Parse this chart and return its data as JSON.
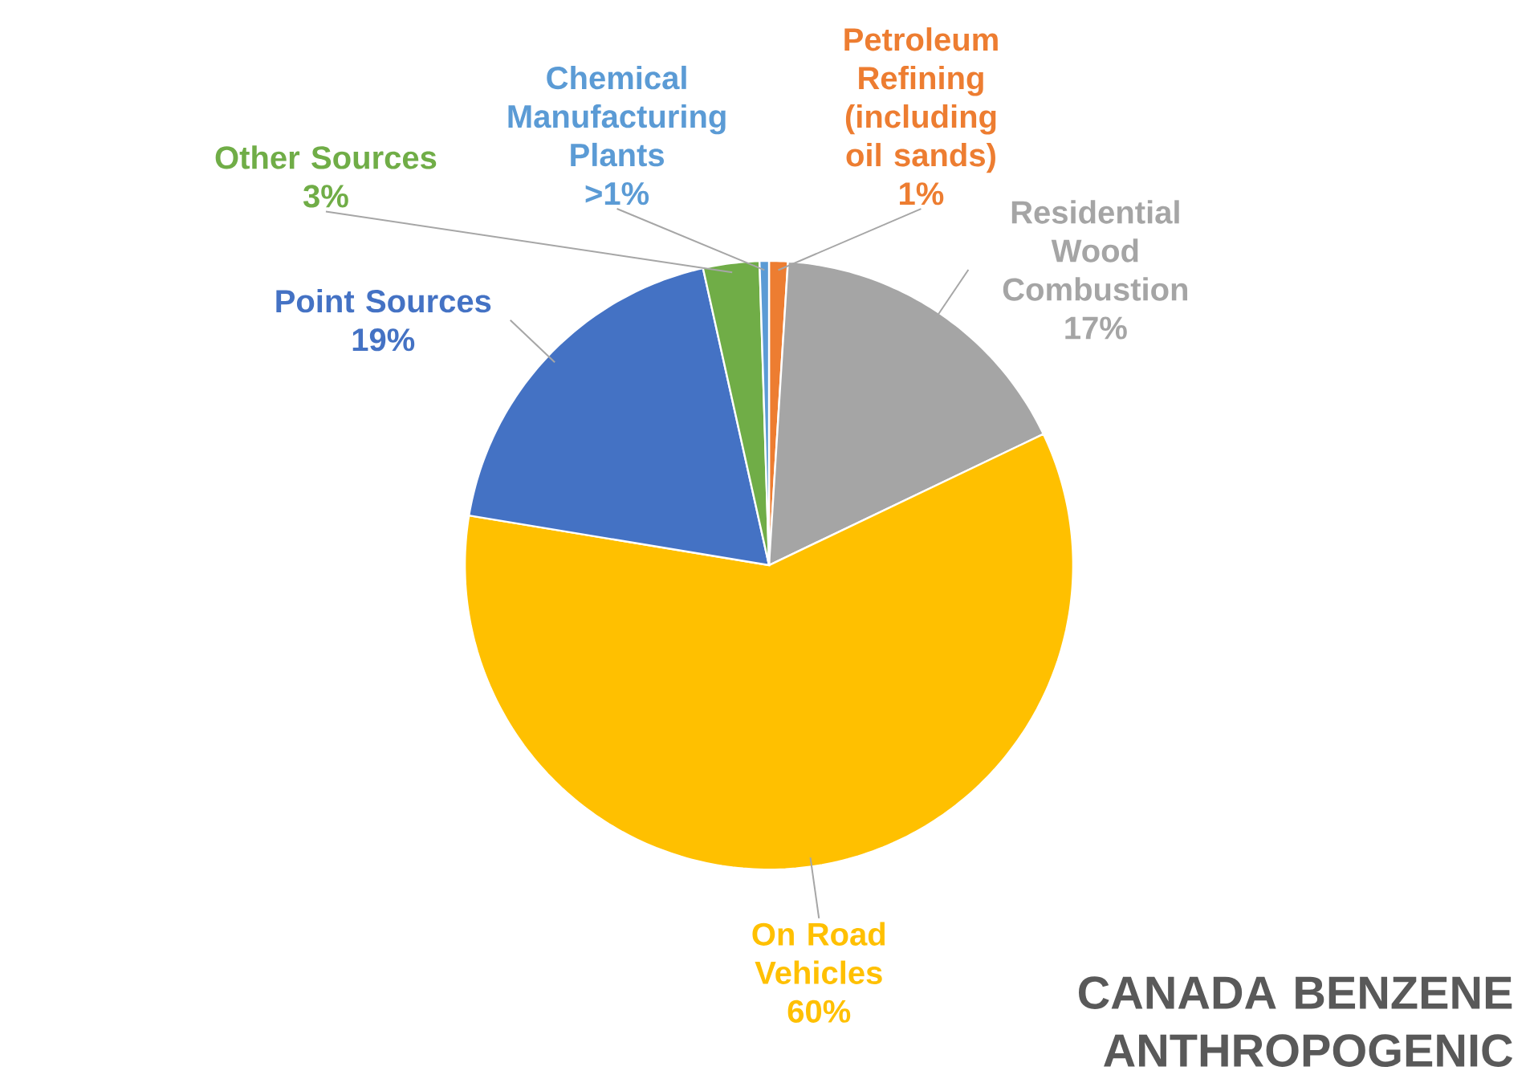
{
  "chart_data": {
    "type": "pie",
    "title": "CANADA BENZENE ANTHROPOGENIC",
    "categories": [
      "Petroleum Refining (including oil sands)",
      "Residential Wood Combustion",
      "On Road Vehicles",
      "Point Sources",
      "Other Sources",
      "Chemical Manufacturing Plants"
    ],
    "values": [
      1,
      17,
      60,
      19,
      3,
      0.5
    ],
    "value_labels": [
      "1%",
      "17%",
      "60%",
      "19%",
      "3%",
      ">1%"
    ],
    "colors": [
      "#ed7d31",
      "#a5a5a5",
      "#ffc000",
      "#4472c4",
      "#70ad47",
      "#5b9bd5"
    ]
  }
}
